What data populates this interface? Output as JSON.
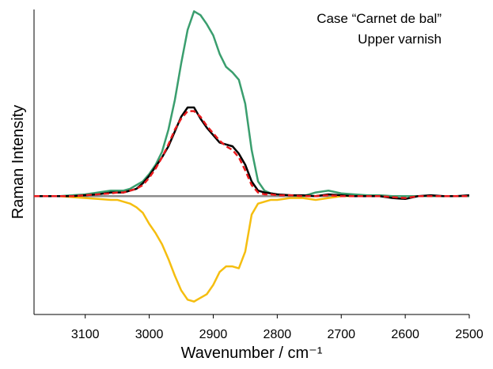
{
  "chart_data": {
    "type": "line",
    "annotations": [
      "Case “Carnet de bal”",
      "Upper varnish"
    ],
    "x_label": "Wavenumber / cm⁻¹",
    "y_label": "Raman Intensity",
    "x": [
      3180,
      3160,
      3140,
      3120,
      3100,
      3080,
      3060,
      3050,
      3040,
      3030,
      3020,
      3010,
      3000,
      2990,
      2980,
      2970,
      2960,
      2950,
      2940,
      2930,
      2920,
      2910,
      2900,
      2890,
      2880,
      2870,
      2860,
      2850,
      2840,
      2830,
      2820,
      2810,
      2800,
      2780,
      2760,
      2740,
      2720,
      2700,
      2680,
      2660,
      2640,
      2620,
      2600,
      2580,
      2560,
      2540,
      2520,
      2500
    ],
    "xlim": [
      3180,
      2500
    ],
    "xticks": [
      3100,
      3000,
      2900,
      2800,
      2700,
      2600,
      2500
    ],
    "ylim": [
      -0.64,
      1.01
    ],
    "reference_line": {
      "value": 0,
      "color": "#8c8c8c"
    },
    "series": [
      {
        "color": "#f5be10",
        "dash": false,
        "values": [
          0,
          0,
          0,
          -0.005,
          -0.01,
          -0.015,
          -0.02,
          -0.02,
          -0.03,
          -0.04,
          -0.06,
          -0.09,
          -0.15,
          -0.2,
          -0.26,
          -0.34,
          -0.43,
          -0.51,
          -0.56,
          -0.57,
          -0.55,
          -0.53,
          -0.48,
          -0.41,
          -0.38,
          -0.38,
          -0.39,
          -0.3,
          -0.1,
          -0.04,
          -0.03,
          -0.02,
          -0.02,
          -0.01,
          -0.01,
          -0.02,
          -0.01,
          0,
          0,
          0,
          0,
          0,
          0,
          0,
          0,
          0,
          0,
          0
        ]
      },
      {
        "color": "#3a9e6e",
        "dash": false,
        "values": [
          0,
          0,
          0,
          0.005,
          0.01,
          0.02,
          0.03,
          0.03,
          0.03,
          0.04,
          0.06,
          0.08,
          0.12,
          0.17,
          0.24,
          0.36,
          0.52,
          0.72,
          0.9,
          1.0,
          0.98,
          0.93,
          0.87,
          0.77,
          0.7,
          0.67,
          0.63,
          0.5,
          0.25,
          0.08,
          0.03,
          0.015,
          0.01,
          0.005,
          0,
          0.02,
          0.03,
          0.015,
          0.01,
          0.005,
          0.005,
          0,
          0,
          0,
          0,
          0,
          0,
          0
        ]
      },
      {
        "color": "#000000",
        "dash": false,
        "values": [
          0,
          0,
          0,
          0,
          0.005,
          0.01,
          0.02,
          0.02,
          0.02,
          0.03,
          0.04,
          0.07,
          0.11,
          0.16,
          0.21,
          0.27,
          0.35,
          0.43,
          0.48,
          0.48,
          0.42,
          0.37,
          0.33,
          0.29,
          0.28,
          0.27,
          0.23,
          0.17,
          0.08,
          0.03,
          0.02,
          0.015,
          0.01,
          0.005,
          0.005,
          0,
          0.01,
          0.005,
          0,
          0,
          0,
          -0.01,
          -0.015,
          0,
          0.005,
          0,
          0,
          0.005
        ]
      },
      {
        "color": "#e8191c",
        "dash": true,
        "values": [
          0,
          0,
          0,
          0,
          0.005,
          0.01,
          0.015,
          0.02,
          0.02,
          0.03,
          0.04,
          0.06,
          0.1,
          0.15,
          0.21,
          0.28,
          0.36,
          0.42,
          0.46,
          0.46,
          0.43,
          0.38,
          0.34,
          0.3,
          0.27,
          0.25,
          0.21,
          0.14,
          0.06,
          0.02,
          0.01,
          0.01,
          0.005,
          0.005,
          0,
          0,
          0.005,
          0,
          0,
          0,
          0,
          -0.005,
          -0.01,
          0,
          0,
          0,
          0,
          0
        ]
      }
    ]
  }
}
